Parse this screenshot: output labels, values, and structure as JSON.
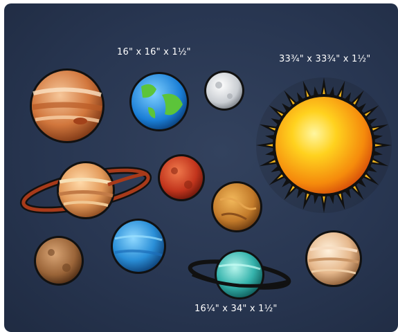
{
  "labels": {
    "small_planet_size": "16\" x 16\" x 1½\"",
    "sun_size": "33¾\" x 33¾\" x 1½\"",
    "ringed_planet_size": "16¼\" x 34\" x 1½\""
  },
  "colors": {
    "background": "#283651",
    "sun_core": "#ffd21f",
    "sun_rays": "#111111"
  }
}
